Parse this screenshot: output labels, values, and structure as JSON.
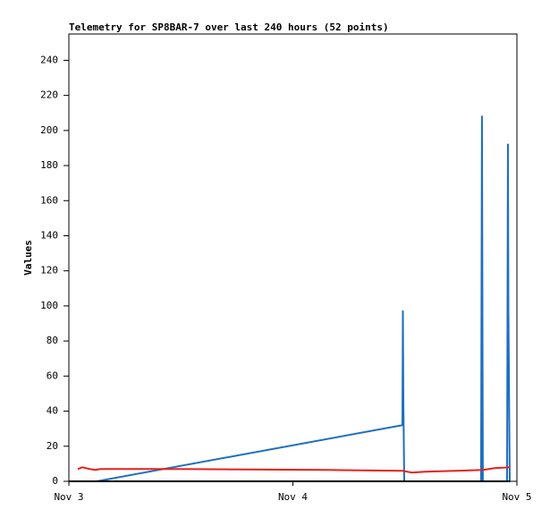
{
  "chart_data": {
    "type": "line",
    "title": "Telemetry for SP8BAR-7 over last 240 hours (52 points)",
    "y_label": "Values",
    "xlim": [
      3,
      5
    ],
    "xticks": [
      {
        "value": 3,
        "label": "Nov 3"
      },
      {
        "value": 4,
        "label": "Nov 4"
      },
      {
        "value": 5,
        "label": "Nov 5"
      }
    ],
    "ylim": [
      0,
      255
    ],
    "yticks": [
      0,
      20,
      40,
      60,
      80,
      100,
      120,
      140,
      160,
      180,
      200,
      220,
      240
    ],
    "grid": false,
    "series": [
      {
        "color": "#1f6fbf",
        "x": [
          3.124,
          4.489,
          4.491,
          4.493,
          4.497,
          4.84,
          4.844,
          4.848,
          4.956,
          4.96,
          4.962,
          4.968
        ],
        "values": [
          0,
          32,
          97,
          48,
          0,
          0,
          208,
          0,
          0,
          192,
          97,
          0
        ]
      },
      {
        "color": "#e8201c",
        "x": [
          3.04,
          3.06,
          3.092,
          3.12,
          3.14,
          3.49,
          4.15,
          4.49,
          4.53,
          4.59,
          4.73,
          4.85,
          4.9,
          4.97
        ],
        "values": [
          7,
          8,
          7,
          6.5,
          7,
          7,
          6.5,
          6,
          5,
          5.5,
          6,
          6.5,
          7.5,
          8
        ]
      },
      {
        "color": "#000000",
        "x": [
          3.0,
          4.97
        ],
        "values": [
          0,
          0
        ]
      }
    ]
  }
}
